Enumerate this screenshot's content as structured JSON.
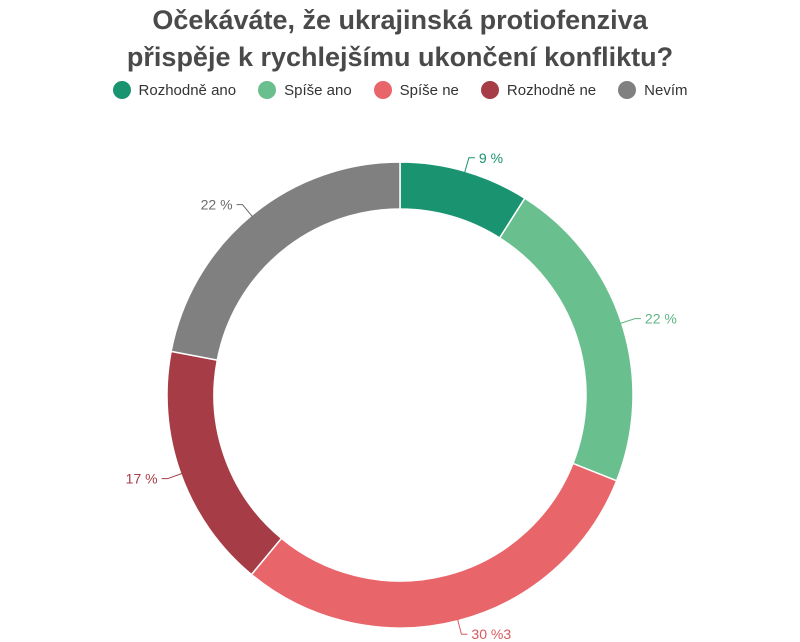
{
  "title_lines": [
    "Očekáváte, že ukrajinská protiofenziva",
    "přispěje k rychlejšímu ukončení konfliktu?"
  ],
  "chart_data": {
    "type": "pie",
    "variant": "donut",
    "title": "Očekáváte, že ukrajinská protiofenziva přispěje k rychlejšímu ukončení konfliktu?",
    "legend_position": "top",
    "categories": [
      "Rozhodně ano",
      "Spíše ano",
      "Spíše ne",
      "Rozhodně ne",
      "Nevím"
    ],
    "values": [
      9,
      22,
      30,
      17,
      22
    ],
    "labels": [
      "9 %",
      "22 %",
      "30 %3",
      "17 %",
      "22 %"
    ],
    "colors": [
      "#1a9370",
      "#6abf8e",
      "#e8666a",
      "#a63c46",
      "#808080"
    ],
    "label_colors": [
      "#1a9370",
      "#5fb585",
      "#d85a5e",
      "#a63c46",
      "#6b6b6b"
    ]
  }
}
